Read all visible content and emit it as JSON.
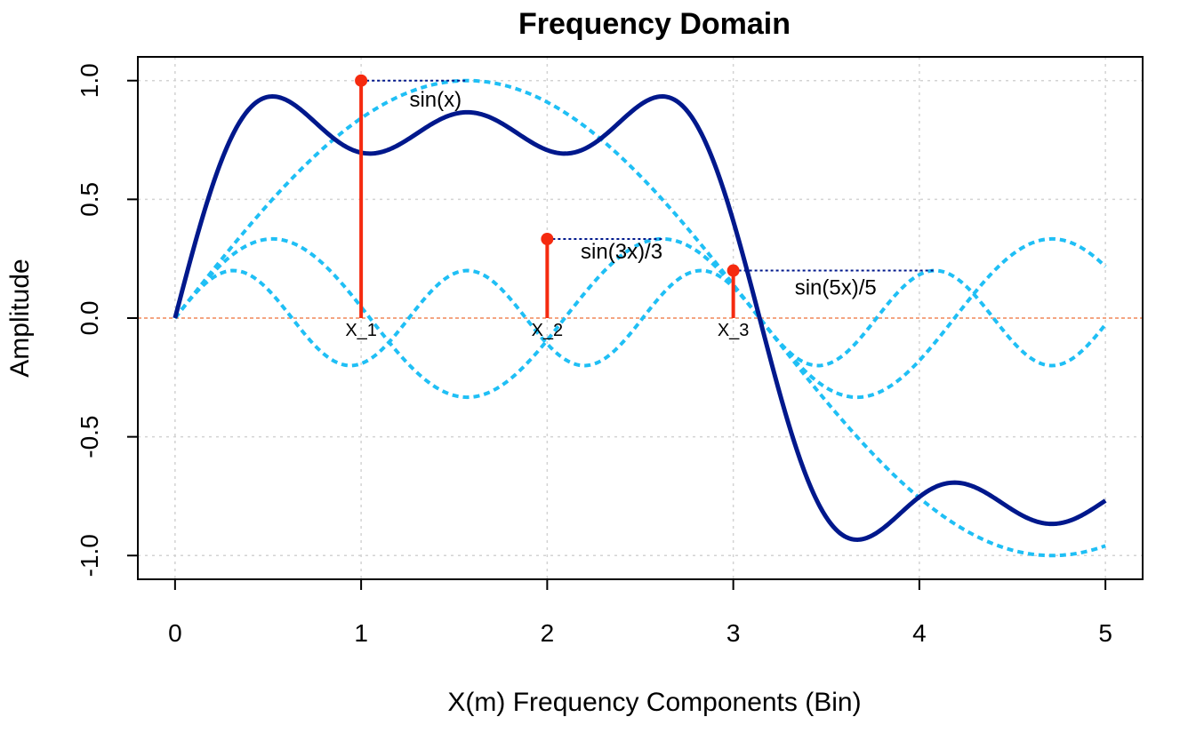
{
  "chart_data": {
    "type": "line",
    "title": "Frequency Domain",
    "xlabel": "X(m) Frequency Components (Bin)",
    "ylabel": "Amplitude",
    "xlim": [
      -0.2,
      5.2
    ],
    "ylim": [
      -1.1,
      1.1
    ],
    "x_ticks": [
      0,
      1,
      2,
      3,
      4,
      5
    ],
    "x_tick_labels": [
      "0",
      "1",
      "2",
      "3",
      "4",
      "5"
    ],
    "y_ticks": [
      -1.0,
      -0.5,
      0.0,
      0.5,
      1.0
    ],
    "y_tick_labels": [
      "-1.0",
      "-0.5",
      "0.0",
      "0.5",
      "1.0"
    ],
    "grid": true,
    "series": [
      {
        "id": "sum",
        "formula": "sin(x) + sin(3x)/3 + sin(5x)/5",
        "x_range": [
          0,
          5
        ],
        "color": "#00188C",
        "style": "solid"
      },
      {
        "id": "h1",
        "formula": "sin(x)",
        "x_range": [
          0,
          5
        ],
        "color": "#1FBFF5",
        "style": "dashed"
      },
      {
        "id": "h3",
        "formula": "sin(3x)/3",
        "x_range": [
          0,
          5
        ],
        "color": "#1FBFF5",
        "style": "dashed"
      },
      {
        "id": "h5",
        "formula": "sin(5x)/5",
        "x_range": [
          0,
          5
        ],
        "color": "#1FBFF5",
        "style": "dashed"
      }
    ],
    "stems": [
      {
        "x": 1,
        "y": 1.0,
        "label": "X_1"
      },
      {
        "x": 2,
        "y": 0.333,
        "label": "X_2"
      },
      {
        "x": 3,
        "y": 0.2,
        "label": "X_3"
      }
    ],
    "stem_color": "#F52A0F",
    "guide_lines": [
      {
        "y": 1.0,
        "x_start": 1,
        "x_end": 1.57
      },
      {
        "y": 0.333,
        "x_start": 2,
        "x_end": 2.62
      },
      {
        "y": 0.2,
        "x_start": 3,
        "x_end": 4.08
      }
    ],
    "zero_line_color": "#F4A582",
    "annotations": [
      {
        "text": "sin(x)",
        "x": 1.4,
        "y": 0.89
      },
      {
        "text": "sin(3x)/3",
        "x": 2.4,
        "y": 0.25
      },
      {
        "text": "sin(5x)/5",
        "x": 3.55,
        "y": 0.1
      }
    ]
  }
}
